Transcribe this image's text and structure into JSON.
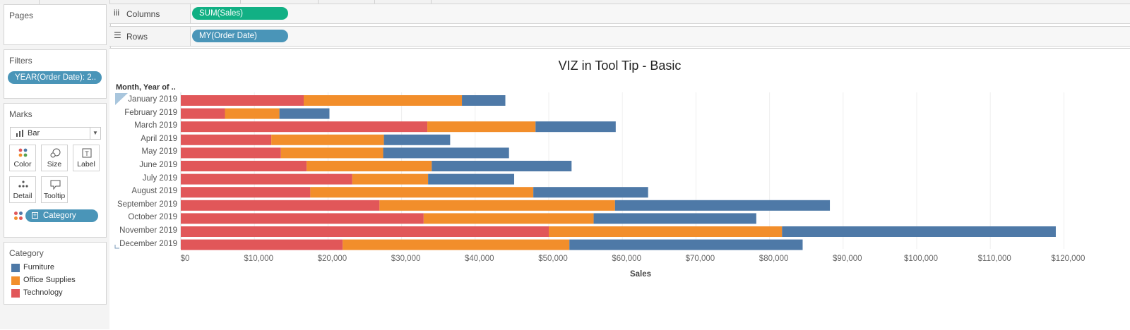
{
  "pages_title": "Pages",
  "filters": {
    "title": "Filters",
    "pill": "YEAR(Order Date): 2.."
  },
  "marks": {
    "title": "Marks",
    "type": "Bar",
    "buttons": {
      "color": "Color",
      "size": "Size",
      "label": "Label",
      "detail": "Detail",
      "tooltip": "Tooltip"
    },
    "category_pill": "Category"
  },
  "legend": {
    "title": "Category",
    "items": [
      {
        "label": "Furniture",
        "color": "#4e79a7"
      },
      {
        "label": "Office Supplies",
        "color": "#f28e2b"
      },
      {
        "label": "Technology",
        "color": "#e15759"
      }
    ]
  },
  "shelves": {
    "columns": {
      "label": "Columns",
      "pill": "SUM(Sales)"
    },
    "rows": {
      "label": "Rows",
      "pill": "MY(Order Date)"
    }
  },
  "chart_data": {
    "type": "bar",
    "stacked": true,
    "orientation": "horizontal",
    "title": "VIZ in Tool Tip - Basic",
    "row_header": "Month, Year of ..",
    "xlabel": "Sales",
    "xlim": [
      0,
      120000
    ],
    "xticks": [
      "$0",
      "$10,000",
      "$20,000",
      "$30,000",
      "$40,000",
      "$50,000",
      "$60,000",
      "$70,000",
      "$80,000",
      "$90,000",
      "$100,000",
      "$110,000",
      "$120,000"
    ],
    "grid": true,
    "categories": [
      "January 2019",
      "February 2019",
      "March 2019",
      "April 2019",
      "May 2019",
      "June 2019",
      "July 2019",
      "August 2019",
      "September 2019",
      "October 2019",
      "November 2019",
      "December 2019"
    ],
    "series": [
      {
        "name": "Technology",
        "color": "#e15759",
        "values": [
          16700,
          6000,
          33500,
          12300,
          13600,
          17100,
          23300,
          17600,
          27000,
          33000,
          50000,
          22000
        ]
      },
      {
        "name": "Office Supplies",
        "color": "#f28e2b",
        "values": [
          21500,
          7400,
          14700,
          15300,
          13900,
          17000,
          10300,
          30300,
          32000,
          23100,
          31700,
          30800
        ]
      },
      {
        "name": "Furniture",
        "color": "#4e79a7",
        "values": [
          5900,
          6800,
          10900,
          9000,
          17100,
          19000,
          11700,
          15600,
          29200,
          22100,
          37200,
          31700
        ]
      }
    ]
  }
}
